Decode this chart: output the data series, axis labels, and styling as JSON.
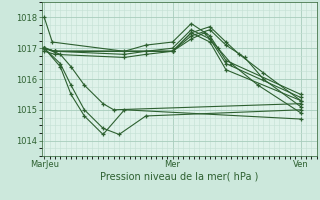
{
  "xlabel": "Pression niveau de la mer( hPa )",
  "bg_color": "#cce8dc",
  "plot_bg_color": "#dff2ea",
  "grid_color_major": "#a8ccbc",
  "grid_color_minor": "#c4e0d4",
  "line_color": "#2d6030",
  "ylim": [
    1013.5,
    1018.5
  ],
  "yticks": [
    1014,
    1015,
    1016,
    1017,
    1018
  ],
  "xtick_labels": [
    "MarJeu",
    "Mer",
    "Ven"
  ],
  "xtick_positions": [
    0.0,
    0.48,
    0.96
  ],
  "xlim": [
    -0.01,
    1.02
  ],
  "series": [
    {
      "x": [
        0.0,
        0.06,
        0.1,
        0.15,
        0.22,
        0.26,
        0.96
      ],
      "y": [
        1017.0,
        1016.8,
        1016.4,
        1015.8,
        1015.2,
        1015.0,
        1015.2
      ]
    },
    {
      "x": [
        0.0,
        0.06,
        0.1,
        0.15,
        0.22,
        0.28,
        0.38,
        0.96
      ],
      "y": [
        1017.0,
        1016.5,
        1015.8,
        1015.0,
        1014.4,
        1014.2,
        1014.8,
        1015.0
      ]
    },
    {
      "x": [
        0.0,
        0.06,
        0.1,
        0.15,
        0.22,
        0.3,
        0.96
      ],
      "y": [
        1017.0,
        1016.4,
        1015.5,
        1014.8,
        1014.2,
        1015.0,
        1014.7
      ]
    },
    {
      "x": [
        0.0,
        0.04,
        0.48,
        0.55,
        0.62,
        0.68,
        0.73,
        0.82,
        0.96
      ],
      "y": [
        1017.0,
        1016.9,
        1016.9,
        1017.5,
        1017.7,
        1017.2,
        1016.8,
        1016.2,
        1015.3
      ]
    },
    {
      "x": [
        0.0,
        0.04,
        0.48,
        0.55,
        0.62,
        0.68,
        0.75,
        0.82,
        0.96
      ],
      "y": [
        1017.0,
        1016.9,
        1016.9,
        1017.4,
        1017.6,
        1017.1,
        1016.7,
        1016.0,
        1015.1
      ]
    },
    {
      "x": [
        0.0,
        0.04,
        0.48,
        0.55,
        0.6,
        0.65,
        0.7,
        0.8,
        0.96
      ],
      "y": [
        1017.0,
        1016.9,
        1016.9,
        1017.3,
        1017.5,
        1017.0,
        1016.5,
        1015.8,
        1014.9
      ]
    },
    {
      "x": [
        0.0,
        0.03,
        0.3,
        0.38,
        0.48,
        0.55,
        0.62,
        0.68,
        0.96
      ],
      "y": [
        1018.0,
        1017.2,
        1016.9,
        1017.1,
        1017.2,
        1017.8,
        1017.4,
        1016.6,
        1015.5
      ]
    },
    {
      "x": [
        0.0,
        0.04,
        0.3,
        0.38,
        0.48,
        0.55,
        0.62,
        0.68,
        0.96
      ],
      "y": [
        1017.0,
        1016.9,
        1016.8,
        1016.9,
        1017.0,
        1017.6,
        1017.3,
        1016.5,
        1015.4
      ]
    },
    {
      "x": [
        0.0,
        0.04,
        0.3,
        0.38,
        0.48,
        0.55,
        0.62,
        0.68,
        0.96
      ],
      "y": [
        1016.9,
        1016.8,
        1016.7,
        1016.8,
        1016.9,
        1017.5,
        1017.2,
        1016.3,
        1015.3
      ]
    }
  ]
}
